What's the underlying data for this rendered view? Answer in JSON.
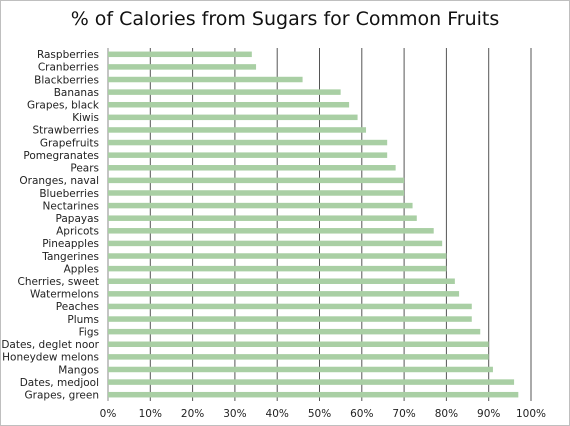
{
  "chart_data": {
    "type": "bar",
    "orientation": "horizontal",
    "title": "% of Calories from Sugars for Common Fruits",
    "xlabel": "",
    "ylabel": "",
    "categories": [
      "Raspberries",
      "Cranberries",
      "Blackberries",
      "Bananas",
      "Grapes, black",
      "Kiwis",
      "Strawberries",
      "Grapefruits",
      "Pomegranates",
      "Pears",
      "Oranges, naval",
      "Blueberries",
      "Nectarines",
      "Papayas",
      "Apricots",
      "Pineapples",
      "Tangerines",
      "Apples",
      "Cherries, sweet",
      "Watermelons",
      "Peaches",
      "Plums",
      "Figs",
      "Dates, deglet noor",
      "Honeydew melons",
      "Mangos",
      "Dates, medjool",
      "Grapes, green"
    ],
    "values": [
      34,
      35,
      46,
      55,
      57,
      59,
      61,
      66,
      66,
      68,
      70,
      70,
      72,
      73,
      77,
      79,
      80,
      80,
      82,
      83,
      86,
      86,
      88,
      90,
      90,
      91,
      96,
      97
    ],
    "xlim": [
      0,
      100
    ],
    "x_ticks": [
      "0%",
      "10%",
      "20%",
      "30%",
      "40%",
      "50%",
      "60%",
      "70%",
      "80%",
      "90%",
      "100%"
    ],
    "grid": "vertical",
    "legend": "none",
    "colors": {
      "bar": "#a9cfa4",
      "gridline": "#555555",
      "axis": "#888888"
    }
  }
}
